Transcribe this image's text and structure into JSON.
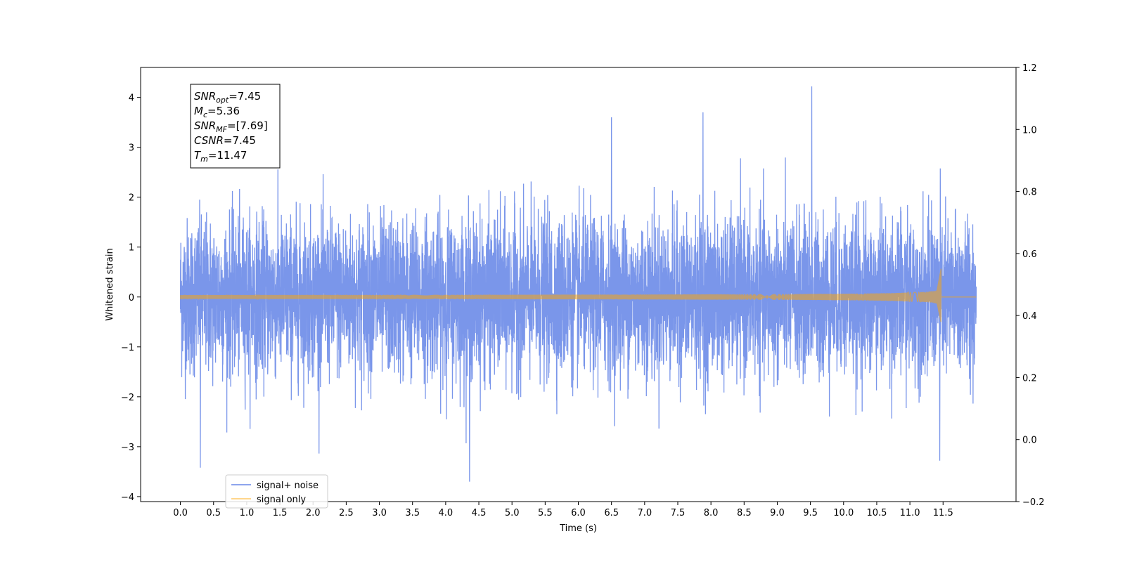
{
  "chart_data": {
    "type": "line",
    "title": "",
    "xlabel": "Time (s)",
    "ylabel": "Whitened strain",
    "xlim": [
      -0.6,
      12.6
    ],
    "ylim": [
      -4.1,
      4.6
    ],
    "y2lim": [
      -0.2,
      1.2
    ],
    "x_ticks": [
      "0.0",
      "0.5",
      "1.0",
      "1.5",
      "2.0",
      "2.5",
      "3.0",
      "3.5",
      "4.0",
      "4.5",
      "5.0",
      "5.5",
      "6.0",
      "6.5",
      "7.0",
      "7.5",
      "8.0",
      "8.5",
      "9.0",
      "9.5",
      "10.0",
      "10.5",
      "11.0",
      "11.5"
    ],
    "y_ticks": [
      "−4",
      "−3",
      "−2",
      "−1",
      "0",
      "1",
      "2",
      "3",
      "4"
    ],
    "y2_ticks": [
      "−0.2",
      "0.0",
      "0.2",
      "0.4",
      "0.6",
      "0.8",
      "1.0",
      "1.2"
    ],
    "duration": 12.0,
    "merger_time": 11.47,
    "series": [
      {
        "name": "signal+ noise",
        "color": "#4169e1",
        "alpha": 0.7,
        "description": "whitened noise with injected chirp",
        "approx_range": [
          -3.7,
          4.2
        ],
        "notable_peaks": [
          [
            9.52,
            4.22
          ],
          [
            7.88,
            3.7
          ],
          [
            6.5,
            3.6
          ],
          [
            4.36,
            -3.7
          ],
          [
            0.3,
            -3.42
          ],
          [
            11.45,
            -3.28
          ]
        ]
      },
      {
        "name": "signal only",
        "color": "#ffa500",
        "alpha": 0.5,
        "description": "chirp waveform, amplitude grows toward merger",
        "amplitude_start": 0.04,
        "amplitude_peak": 0.72,
        "amplitude_at_merger_negative": -0.65
      }
    ],
    "legend_placement": "lower-left",
    "annotation": [
      {
        "base": "SNR",
        "sub": "opt",
        "value": "=7.45"
      },
      {
        "base": "M",
        "sub": "c",
        "value": "=5.36"
      },
      {
        "base": "SNR",
        "sub": "MF",
        "value": "=[7.69]"
      },
      {
        "base": "CSNR",
        "sub": "",
        "value": "=7.45"
      },
      {
        "base": "T",
        "sub": "m",
        "value": "=11.47"
      }
    ]
  }
}
